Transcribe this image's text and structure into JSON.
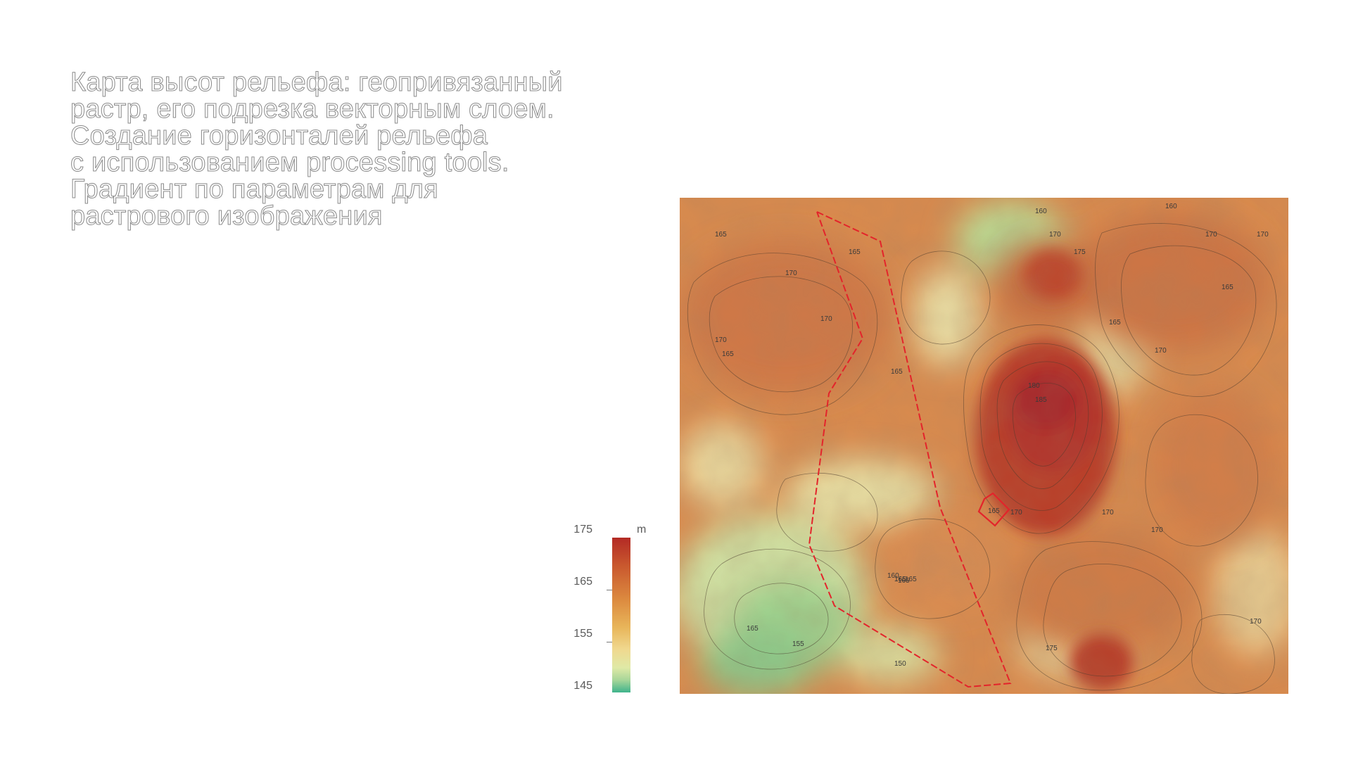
{
  "title_lines": [
    "Карта высот рельефа: геопривязанный",
    "растр, его подрезка векторным слоем.",
    "Создание горизонталей рельефа",
    "с использованием processing tools.",
    "Градиент по параметрам для",
    "растрового изображения"
  ],
  "legend": {
    "unit": "m",
    "ticks": [
      "175",
      "165",
      "155",
      "145"
    ],
    "range": [
      145,
      175
    ],
    "colors": [
      "#b32a25",
      "#dc8a3f",
      "#e8b55a",
      "#dfe9a6",
      "#3fb38c"
    ]
  },
  "map": {
    "contour_labels": [
      "165",
      "160",
      "170",
      "175",
      "180",
      "185",
      "155",
      "150"
    ],
    "boundary_color": "#e3242b",
    "site_label": "165"
  }
}
